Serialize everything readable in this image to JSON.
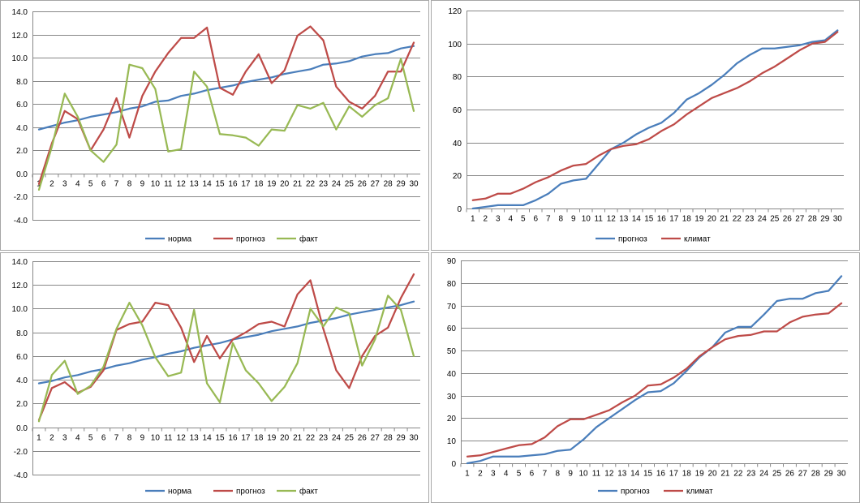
{
  "chart_data": [
    {
      "type": "line",
      "categories": [
        "1",
        "2",
        "3",
        "4",
        "5",
        "6",
        "7",
        "8",
        "9",
        "10",
        "11",
        "12",
        "13",
        "14",
        "15",
        "16",
        "17",
        "18",
        "19",
        "20",
        "21",
        "22",
        "23",
        "24",
        "25",
        "26",
        "27",
        "28",
        "29",
        "30"
      ],
      "y_ticks": [
        "-4.0",
        "-2.0",
        "0.0",
        "2.0",
        "4.0",
        "6.0",
        "8.0",
        "10.0",
        "12.0",
        "14.0"
      ],
      "ylim": [
        -4,
        14
      ],
      "grid": true,
      "legend_position": "bottom",
      "series": [
        {
          "name": "норма",
          "color": "#4a7ebb",
          "values": [
            3.8,
            4.1,
            4.4,
            4.6,
            4.9,
            5.1,
            5.3,
            5.6,
            5.8,
            6.2,
            6.3,
            6.7,
            6.9,
            7.2,
            7.4,
            7.6,
            7.9,
            8.1,
            8.3,
            8.6,
            8.8,
            9.0,
            9.4,
            9.5,
            9.7,
            10.1,
            10.3,
            10.4,
            10.8,
            11.0
          ]
        },
        {
          "name": "прогноз",
          "color": "#be4b48",
          "values": [
            -0.9,
            2.6,
            5.4,
            4.7,
            2.0,
            3.8,
            6.5,
            3.1,
            6.7,
            8.8,
            10.4,
            11.7,
            11.7,
            12.6,
            7.4,
            6.8,
            8.8,
            10.3,
            7.8,
            8.9,
            11.9,
            12.7,
            11.5,
            7.5,
            6.2,
            5.6,
            6.7,
            8.8,
            8.8,
            11.3
          ]
        },
        {
          "name": "факт",
          "color": "#98b954",
          "values": [
            -1.4,
            2.3,
            6.9,
            4.9,
            2.0,
            1.0,
            2.5,
            9.4,
            9.1,
            7.3,
            1.9,
            2.1,
            8.8,
            7.5,
            3.4,
            3.3,
            3.1,
            2.4,
            3.8,
            3.7,
            5.9,
            5.6,
            6.1,
            3.8,
            5.8,
            4.9,
            5.9,
            6.5,
            9.9,
            5.4
          ]
        }
      ]
    },
    {
      "type": "line",
      "categories": [
        "1",
        "2",
        "3",
        "4",
        "5",
        "6",
        "7",
        "8",
        "9",
        "10",
        "11",
        "12",
        "13",
        "14",
        "15",
        "16",
        "17",
        "18",
        "19",
        "20",
        "21",
        "22",
        "23",
        "24",
        "25",
        "26",
        "27",
        "28",
        "29",
        "30"
      ],
      "y_ticks": [
        "0",
        "20",
        "40",
        "60",
        "80",
        "100",
        "120"
      ],
      "ylim": [
        0,
        120
      ],
      "grid": true,
      "legend_position": "bottom",
      "series": [
        {
          "name": "прогноз",
          "color": "#4a7ebb",
          "values": [
            0,
            1,
            2,
            2,
            2,
            5,
            9,
            15,
            17,
            18,
            27,
            36,
            40,
            45,
            49,
            52,
            58,
            66,
            70,
            75,
            81,
            88,
            93,
            97,
            97,
            98,
            99,
            101,
            102,
            108
          ]
        },
        {
          "name": "климат",
          "color": "#be4b48",
          "values": [
            5,
            6,
            9,
            9,
            12,
            16,
            19,
            23,
            26,
            27,
            32,
            36,
            38,
            39,
            42,
            47,
            51,
            57,
            62,
            67,
            70,
            73,
            77,
            82,
            86,
            91,
            96,
            100,
            101,
            107
          ]
        }
      ]
    },
    {
      "type": "line",
      "categories": [
        "1",
        "2",
        "3",
        "4",
        "5",
        "6",
        "7",
        "8",
        "9",
        "10",
        "11",
        "12",
        "13",
        "14",
        "15",
        "16",
        "17",
        "18",
        "19",
        "20",
        "21",
        "22",
        "23",
        "24",
        "25",
        "26",
        "27",
        "28",
        "29",
        "30"
      ],
      "y_ticks": [
        "-4.0",
        "-2.0",
        "0.0",
        "2.0",
        "4.0",
        "6.0",
        "8.0",
        "10.0",
        "12.0",
        "14.0"
      ],
      "ylim": [
        -4,
        14
      ],
      "grid": true,
      "legend_position": "bottom",
      "series": [
        {
          "name": "норма",
          "color": "#4a7ebb",
          "values": [
            3.7,
            3.9,
            4.2,
            4.4,
            4.7,
            4.9,
            5.2,
            5.4,
            5.7,
            5.9,
            6.2,
            6.4,
            6.7,
            6.9,
            7.1,
            7.4,
            7.6,
            7.8,
            8.1,
            8.3,
            8.5,
            8.8,
            9.0,
            9.2,
            9.5,
            9.7,
            9.9,
            10.1,
            10.3,
            10.6
          ]
        },
        {
          "name": "прогноз",
          "color": "#be4b48",
          "values": [
            0.6,
            3.3,
            3.8,
            2.9,
            3.4,
            4.8,
            8.2,
            8.7,
            8.9,
            10.5,
            10.3,
            8.4,
            5.5,
            7.7,
            5.8,
            7.4,
            8.0,
            8.7,
            8.9,
            8.5,
            11.2,
            12.4,
            8.3,
            4.8,
            3.3,
            6.0,
            7.7,
            8.4,
            10.9,
            12.9
          ]
        },
        {
          "name": "факт",
          "color": "#98b954",
          "values": [
            0.5,
            4.4,
            5.6,
            2.8,
            3.5,
            5.1,
            8.3,
            10.5,
            8.6,
            5.9,
            4.3,
            4.6,
            9.9,
            3.7,
            2.1,
            7.1,
            4.8,
            3.7,
            2.2,
            3.4,
            5.4,
            10.0,
            8.5,
            10.1,
            9.6,
            5.2,
            7.4,
            11.1,
            9.9,
            6.0
          ]
        }
      ]
    },
    {
      "type": "line",
      "categories": [
        "1",
        "2",
        "3",
        "4",
        "5",
        "6",
        "7",
        "8",
        "9",
        "10",
        "11",
        "12",
        "13",
        "14",
        "15",
        "16",
        "17",
        "18",
        "19",
        "20",
        "21",
        "22",
        "23",
        "24",
        "25",
        "26",
        "27",
        "28",
        "29",
        "30"
      ],
      "y_ticks": [
        "0",
        "10",
        "20",
        "30",
        "40",
        "50",
        "60",
        "70",
        "80",
        "90"
      ],
      "ylim": [
        0,
        90
      ],
      "grid": true,
      "legend_position": "bottom",
      "series": [
        {
          "name": "прогноз",
          "color": "#4a7ebb",
          "values": [
            0,
            1,
            3,
            3,
            3,
            3.5,
            4,
            5.5,
            6,
            10.5,
            16,
            20,
            24,
            28,
            31.5,
            32,
            35.5,
            41,
            47,
            51.5,
            58,
            60.5,
            60.5,
            66,
            72,
            73,
            73,
            75.5,
            76.5,
            83
          ]
        },
        {
          "name": "климат",
          "color": "#be4b48",
          "values": [
            3,
            3.5,
            5,
            6.5,
            8,
            8.5,
            11.5,
            16.5,
            19.5,
            19.5,
            21.5,
            23.5,
            27,
            30,
            34.5,
            35,
            38,
            42,
            47.5,
            51.5,
            55,
            56.5,
            57,
            58.5,
            58.5,
            62.5,
            65,
            66,
            66.5,
            71
          ]
        }
      ]
    }
  ]
}
